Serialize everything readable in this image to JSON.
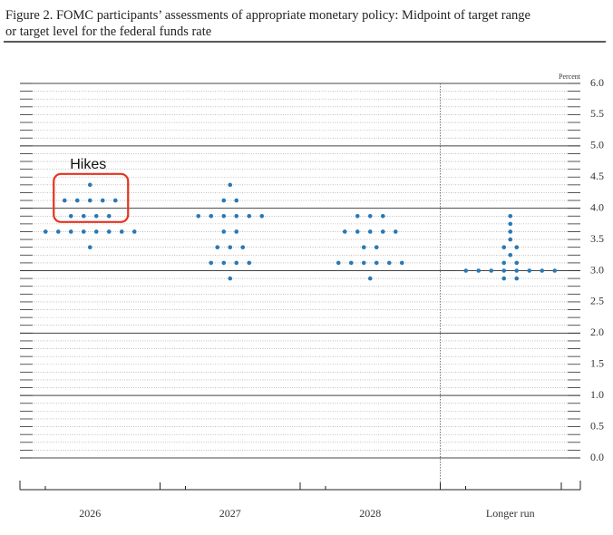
{
  "chart_data": {
    "type": "dot",
    "title": [
      "Figure 2. FOMC participants’ assessments of appropriate monetary policy: Midpoint of target range",
      "or target level for the federal funds rate"
    ],
    "y_label": "Percent",
    "annotation": "Hikes",
    "color": "#2a78b5",
    "categories": [
      "2026",
      "2027",
      "2028",
      "Longer run"
    ],
    "values": [
      [
        4.375,
        4.125,
        4.125,
        4.125,
        4.125,
        4.125,
        3.875,
        3.875,
        3.875,
        3.875,
        3.625,
        3.625,
        3.625,
        3.625,
        3.625,
        3.625,
        3.625,
        3.625,
        3.375
      ],
      [
        4.375,
        4.125,
        4.125,
        3.875,
        3.875,
        3.875,
        3.875,
        3.875,
        3.875,
        3.625,
        3.625,
        3.375,
        3.375,
        3.375,
        3.125,
        3.125,
        3.125,
        3.125,
        2.875
      ],
      [
        3.875,
        3.875,
        3.875,
        3.625,
        3.625,
        3.625,
        3.625,
        3.625,
        3.375,
        3.375,
        3.125,
        3.125,
        3.125,
        3.125,
        3.125,
        3.125,
        2.875
      ],
      [
        3.875,
        3.75,
        3.625,
        3.5,
        3.375,
        3.375,
        3.25,
        3.125,
        3.125,
        3,
        3,
        3,
        3,
        3,
        3,
        3,
        3,
        2.875,
        2.875
      ]
    ],
    "ylim": [
      0,
      6
    ],
    "yticks": [
      {
        "value": 0,
        "label": "0.0"
      },
      {
        "value": 0.5,
        "label": "0.5"
      },
      {
        "value": 1,
        "label": "1.0"
      },
      {
        "value": 1.5,
        "label": "1.5"
      },
      {
        "value": 2,
        "label": "2.0"
      },
      {
        "value": 2.5,
        "label": "2.5"
      },
      {
        "value": 3,
        "label": "3.0"
      },
      {
        "value": 3.5,
        "label": "3.5"
      },
      {
        "value": 4,
        "label": "4.0"
      },
      {
        "value": 4.5,
        "label": "4.5"
      },
      {
        "value": 5,
        "label": "5.0"
      },
      {
        "value": 5.5,
        "label": "5.5"
      },
      {
        "value": 6,
        "label": "6.0"
      }
    ],
    "grid": true
  }
}
